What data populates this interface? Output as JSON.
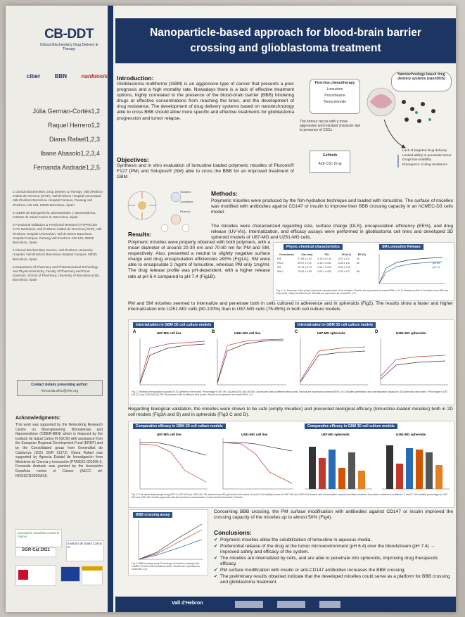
{
  "sidebar": {
    "logo_main": "CB-DDT",
    "logo_sub": "Clinical Biochemistry Drug Delivery & Therapy",
    "partner_logos": [
      "ciber",
      "BBN",
      "nanbiosis"
    ],
    "authors": [
      "Júlia German-Cortés1,2",
      "Raquel Herrero1,2",
      "Diana Rafael1,2,3",
      "Ibane Abasolo1,2,3,4",
      "Fernanda Andrade1,2,5"
    ],
    "affiliations": [
      "1 Clinical Biochemistry, Drug Delivery & Therapy, Vall d'Hebron Institut de Recerca (VHIR), Vall d'Hebron Hospital Universitari, Vall d'Hebron Barcelona Hospital Campus, Passeig Vall d'Hebron 119-129, 08035 Barcelona, Spain",
      "2 CIBER de Bioingeniería, Biomateriales y Nanomedicina, Instituto de Salud Carlos III, Barcelona, Spain",
      "3 Functional Validation & Preclinical Research (FVPR)/U20 ICTS Nanbiosis, Vall d'Hebron Institut de Recerca (VHIR), Vall d'Hebron Hospital Universitari, Vall d'Hebron Barcelona Hospital Campus, Passeig Vall d'Hebron 119-129, 08035 Barcelona, Spain",
      "4 Clinical Biochemistry Service, Vall d'Hebron University Hospital, Vall d'Hebron Barcelona Hospital Campus, 08035 Barcelona, Spain",
      "5 Department of Pharmacy and Pharmaceutical Technology and Physicochemistry, Faculty of Pharmacy and Food Sciences, School of Pharmacy, University of Barcelona (UB), Barcelona, Spain"
    ],
    "contact_title": "Contact details presenting author:",
    "contact_email": "fernanda.silva@vhir.org",
    "ack_title": "Acknowledgments:",
    "ack_text": "This work was supported by the Networking Research Centre on Bioengineering, Biomaterials and Nanomedicine (CIBER-BBN) which is financed by the Instituto de Salud Carlos III (ISCIII) with assistance from the European Regional Development Fund (ERDF) and by the Consolidated group from Generalitat de Catalunya (2021 SGR 01173). Diana Rafael was supported by Agencia Estatal de Investigación from Ministerio de Ciencia y Innovación (PTA2021-021005-I). Fernanda Andrade was granted by the Asociación Española contra el Cáncer (AECC ref. INVES211530DASI).",
    "sponsor_labels": [
      "asociación española contra el cáncer",
      "SGR-Cat 2021",
      "Instituto de Salud Carlos III"
    ]
  },
  "title": "Nanoparticle-based approach for blood-brain barrier crossing and glioblastoma treatment",
  "intro": {
    "heading": "Introduction:",
    "text": "Glioblastoma multiforme (GBM) is an aggressive type of cancer that presents a poor prognosis and a high mortality rate. Nowadays there is a lack of effective treatment options, highly correlated to the presence of the blood-brain barrier (BBB) hindering drugs at effective concentrations from reaching the brain, and the development of drug resistance. The development of drug delivery systems based on nanotechnology able to cross BBB should allow more specific and effective treatments for glioblastoma progression and tumor relapse."
  },
  "scheme": {
    "first_line_title": "First-line chemotherapy",
    "first_line_items": [
      "Lomustine",
      "Procarbazine",
      "Temozolomide"
    ],
    "nano_title": "Nanotechnology-based drug delivery systems (nanoDDS)",
    "recurs_text": "The tumour recurs with a more aggressive and resistant character due to presence of CSCs",
    "gefitinib": "Gefitinib",
    "anti_csc": "Anti-CSC Drug",
    "limits": [
      "Lack of targeted drug delivery",
      "Limited ability to penetrate tumor",
      "Drugs low solubility",
      "Emergence of drug resistance"
    ]
  },
  "objectives": {
    "heading": "Objectives:",
    "text": "Synthesis and in vitro evaluation of lomustine loaded polymeric micelles of Pluronic® F127 (PM) and Soluplus® (SM) able to cross the BBB for an improved treatment of GBM."
  },
  "methods": {
    "heading": "Methods:",
    "p1": "Polymeric micelles were produced by the film-hydration technique and loaded with lomustine. The surface of micelles was modified with antibodies against CD147 or insulin to improve their BBB crossing capacity in an hCMEC-D3 cells model.",
    "p2": "The micelles were characterized regarding size, surface charge (DLS), encapsulation efficiency (EE%), and drug release (UV-Vis). Internalization, and efficacy assays were performed in glioblastoma cell lines and developed 3D spheroid models of U87-MG and U251-MG cells.",
    "diagram_labels": [
      "Soluplus",
      "Lomustine",
      "Pluronic",
      "PM-Lomustine",
      "SM-Lomustine"
    ]
  },
  "results": {
    "heading": "Results:",
    "p1": "Polymeric micelles were properly obtained with both polymers, with a mean diameter of around 20-30 nm and 70-80 nm for PM and SM, respectively. Also, presented a neutral to slightly negative surface charge and drug encapsulation efficiencies ≥90% (Fig1A). SM were able to encapsulate 2 mg/ml of lomustine, whereas PM only 1mg/ml. The drug release profile was pH-dependent, with a higher release rate at pH 6.4 compared to pH 7.4 (Fig1B).",
    "p2": "PM and SM micelles seemed to internalize and penetrate both in cells cultured in adherence and in spheroids (Fig2). The results show a faster and higher internalization into U251-MG cells (80-100%) than in U87-MG cells (75-85%) in both cell culture models.",
    "p3": "Regarding biological validation, the micelles were shown to be safe (empty micelles) and presented biological efficacy (lomustine-loaded micelles) both in 2D cell models (Fig3A and B) and in spheroids (Fig3 C and D).",
    "p4": "Concerning BBB crossing, the PM surface modification with antibodies against CD147 or insulin improved the crossing capacity of the micelles up to almost 50% (Fig4)."
  },
  "fig1": {
    "title_a": "Physic-chemical characteristics",
    "title_b": "SM-Lomustine Release",
    "table_headers": [
      "Formulation",
      "Size (nm)",
      "PDI",
      "ZP (mV)",
      "EE (%)"
    ],
    "table_rows": [
      [
        "PM",
        "27.06 ± 1.02",
        "0.101 ± 0.13",
        "-0.07 ± 0.2",
        "94"
      ],
      [
        "PM-L",
        "25.97 ± 1.11",
        "0.13 ± 0.011",
        "-3.05 ± 1.8",
        "91"
      ],
      [
        "SM",
        "76.70 ± 0.79",
        "0.04 ± 0.011",
        "-0.04 ± 0.47",
        "-"
      ],
      [
        "SM-L",
        "75.00 ± 0.95",
        "0.05 ± 0.023",
        "-0.20 ± 0.2",
        "98"
      ]
    ],
    "legend": [
      "pH 6.4",
      "pH 7.4"
    ],
    "caption": "Fig. 1. A. Summary of the physic-chemical characteristics of the micelles. Results are expressed as mean±SEM, n=3. B. Release profile of lomustine from SM over time (until 7 days) at different pH. Results are expressed as mean±SD, n=3."
  },
  "fig2": {
    "title_2d": "Internalization in GBM 2D cell culture models",
    "title_3d": "Internalization in GBM 3D cell culture models",
    "sub": [
      "U87-MG cell line",
      "U251-MG cell line",
      "U87-MG spheroids",
      "U251-MG spheroids"
    ],
    "letters": [
      "A",
      "B",
      "C",
      "D"
    ],
    "caption": "Fig. 2. Micelles internalization capacity in 2D-adherent cell models. Percentage of U87-MG (A) and U251-MG (B) DiIC-fluorescent cells at different time points. Results are expressed as mean±SEM, n=3. Micelles penetration and internalization capacity in 3D-spheroids cell models. Percentage of U87-MG (C) and U251-MG (D) DiIC-fluorescent cells at different time points. Results are expressed as mean±SEM, n=3."
  },
  "fig3": {
    "title_2d": "Comparative efficacy in GBM 2D cell culture models",
    "title_3d": "Comparative efficacy in GBM 3D cell culture models",
    "sub": [
      "U87-MG cell line",
      "U251-MG cell line",
      "U87-MG spheroids",
      "U251-MG spheroids"
    ],
    "caption": "Fig. 3. Cell cytotoxicity assays using MTS in U87-MG and U251-MG 2D-adherent and 3D-spheroids cell models. A and B: Cell viability curves for U87-MG and U251-MG treated with the lomustine loaded formulation and their lomustine in adherent conditions. C and D: Cell viability percentage for U87-MG and U251-MG treated spheroids with the maximum concentration of each tested formulation. Results"
  },
  "fig4": {
    "title": "BBB crossing assay",
    "caption": "Fig. 4. BBB crossing assay. Percentage of micelles crossing in the hCMEC-D3 cell model at different times. Results are expressed as mean±SD, n=3."
  },
  "conclusions": {
    "heading": "Conclusions:",
    "items": [
      "Polymeric micelles allow the solubilization of lomustine in aqueous media.",
      "Preferential release of the drug at the tumor microenvironment (pH 6.4) over the bloodstream (pH 7.4) → improved safety and efficacy of the system.",
      "The micelles are internalized by cells, and are able to penetrate into spheroids, improving drug therapeutic efficacy.",
      "PM surface modification with insulin or anti-CD147 antibodies increases the BBB crossing.",
      "The preliminary results obtained indicate that the developed micelles could serve as a platform for BBB crossing and glioblastoma treatment."
    ]
  },
  "footer": {
    "logo": "Vall d'Hebron"
  }
}
